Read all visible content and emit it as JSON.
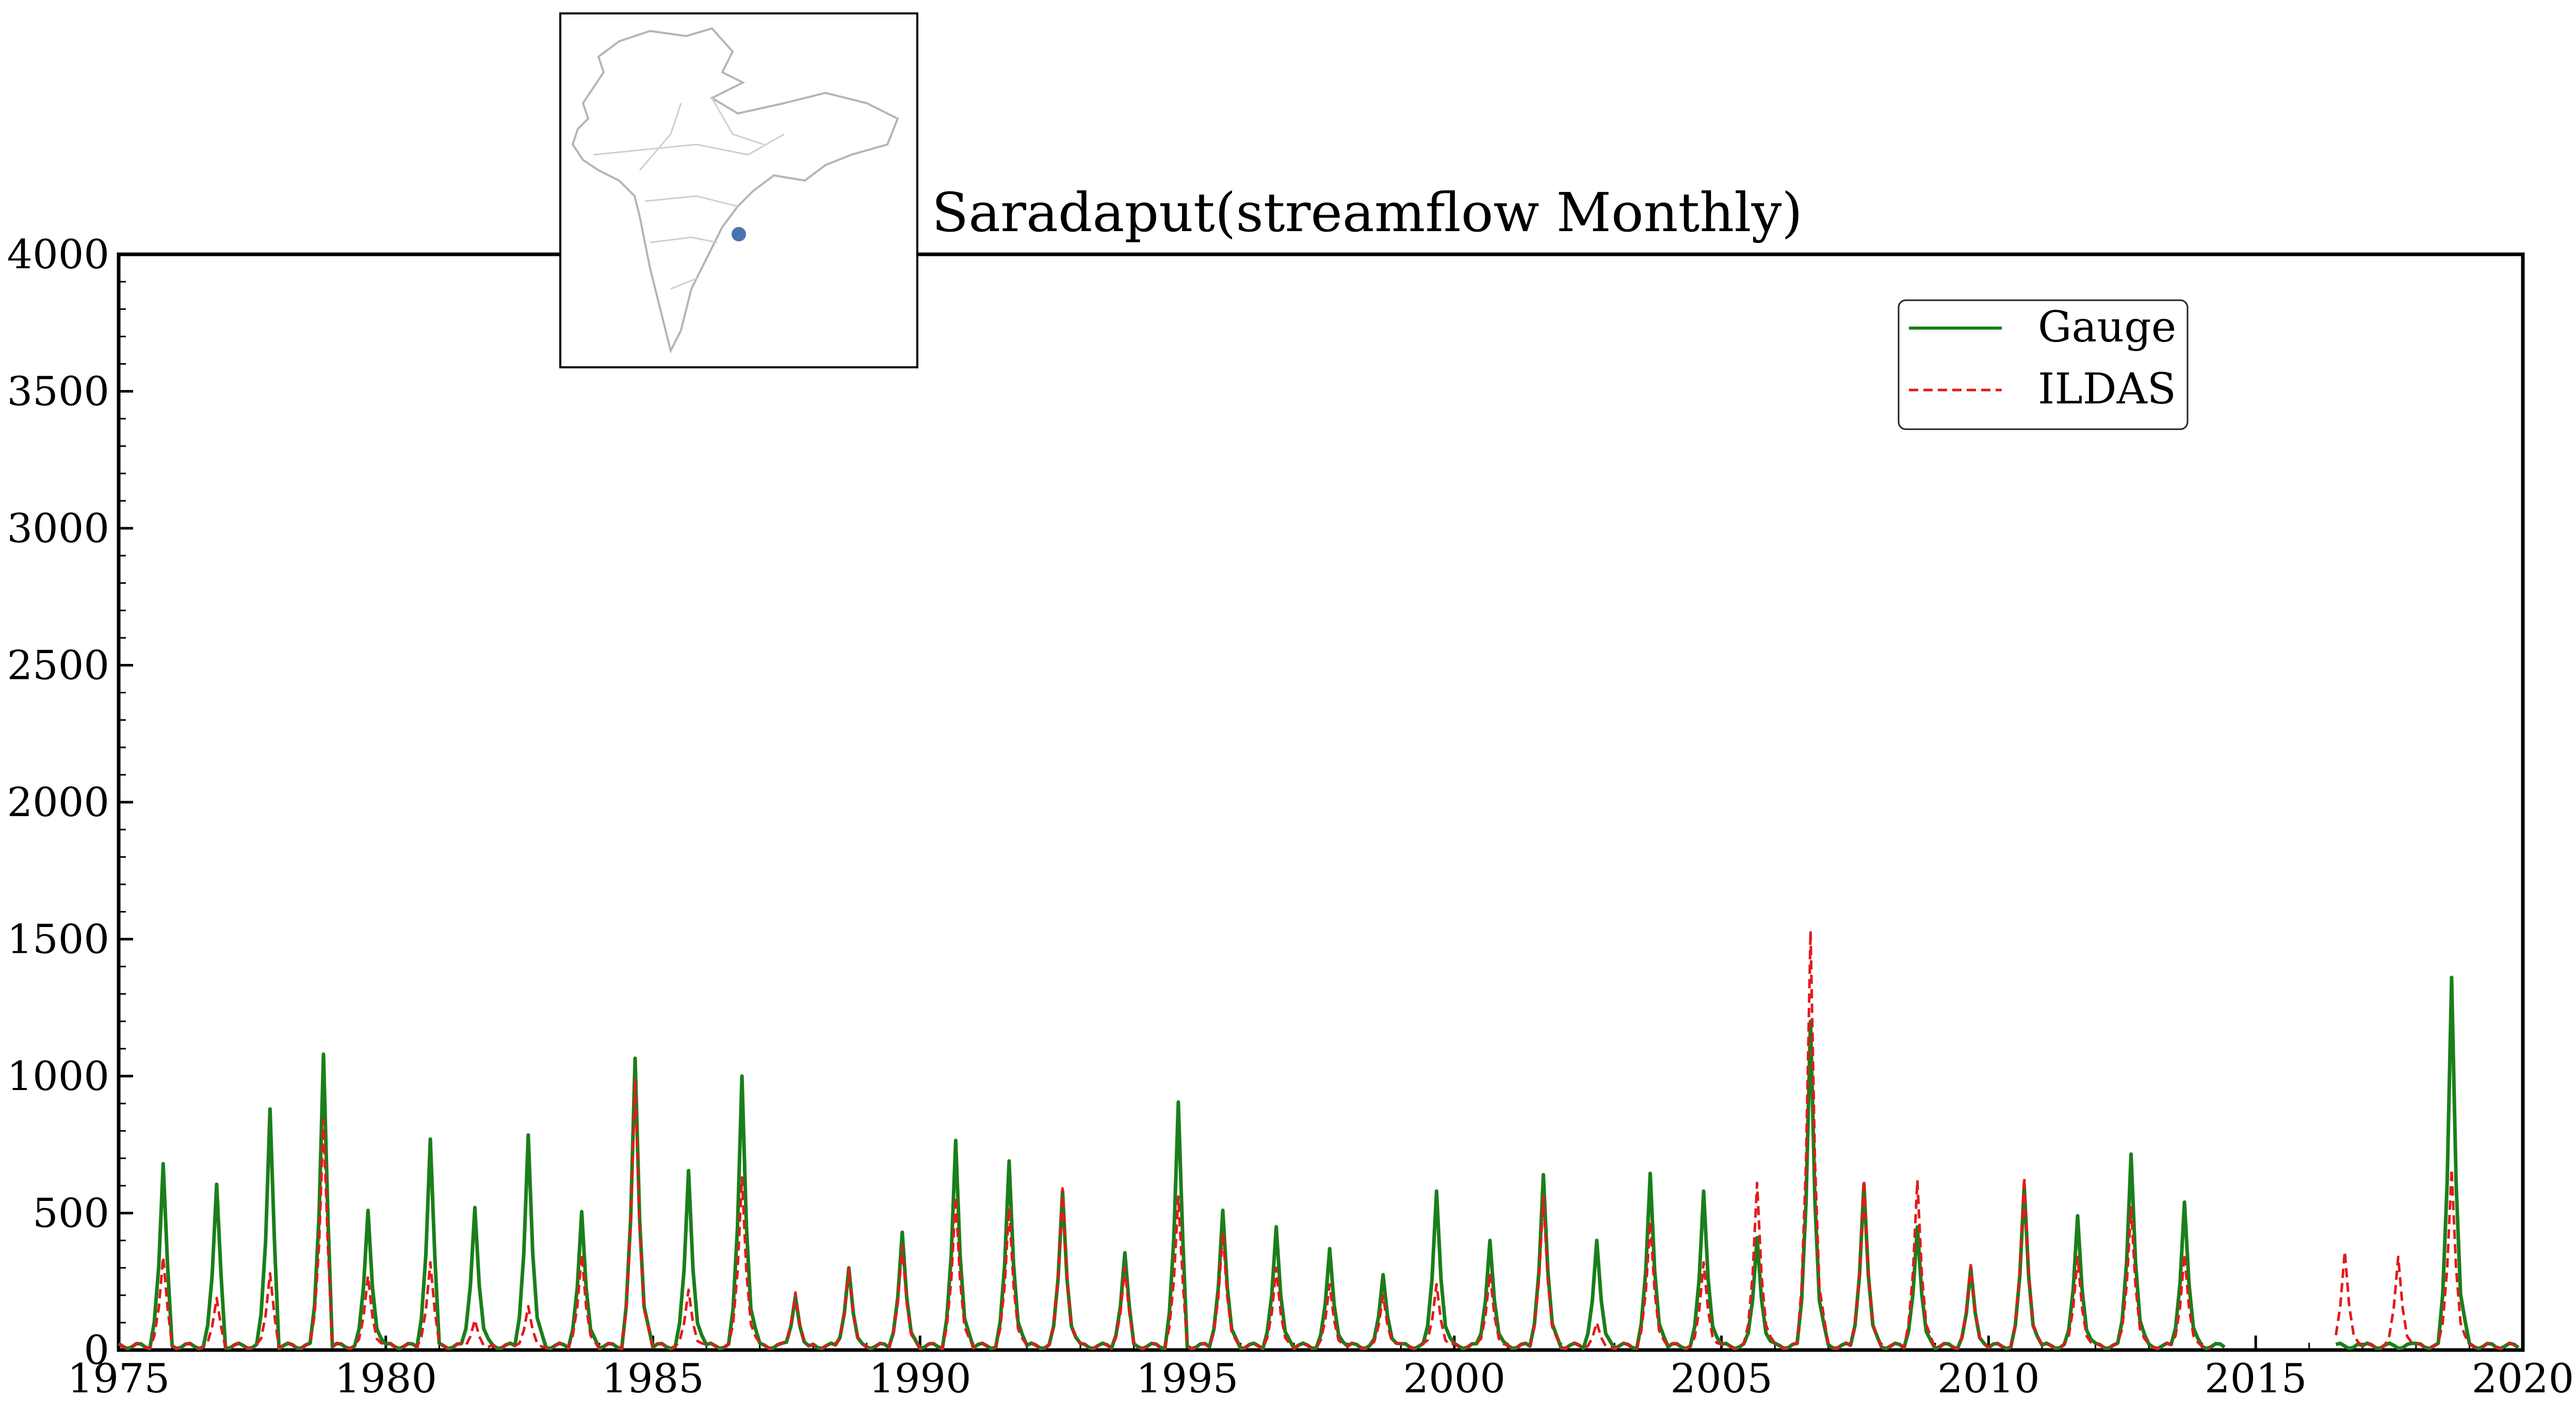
{
  "chart_data": {
    "type": "line",
    "title": "Saradaput(streamflow Monthly)",
    "xlabel": "",
    "ylabel": "",
    "xlim": [
      1975,
      2020
    ],
    "ylim": [
      0,
      4000
    ],
    "xticks": [
      1975,
      1980,
      1985,
      1990,
      1995,
      2000,
      2005,
      2010,
      2015,
      2020
    ],
    "yticks": [
      0,
      500,
      1000,
      1500,
      2000,
      2500,
      3000,
      3500,
      4000
    ],
    "grid": false,
    "legend": "upper-right",
    "inset_map": {
      "region": "Indian subcontinent river basins",
      "marker_color": "#4a74b0"
    },
    "series": [
      {
        "name": "Gauge",
        "style": "solid",
        "color": "#1a7f1a",
        "peaks": [
          {
            "year": 1975.0,
            "base": 20
          },
          {
            "year": 1975.8,
            "value": 680
          },
          {
            "year": 1976.8,
            "value": 605
          },
          {
            "year": 1977.8,
            "value": 880
          },
          {
            "year": 1978.8,
            "value": 1080
          },
          {
            "year": 1979.7,
            "value": 510
          },
          {
            "year": 1980.8,
            "value": 770
          },
          {
            "year": 1981.7,
            "value": 520
          },
          {
            "year": 1982.7,
            "value": 785
          },
          {
            "year": 1983.7,
            "value": 505
          },
          {
            "year": 1984.7,
            "value": 1065
          },
          {
            "year": 1985.7,
            "value": 655
          },
          {
            "year": 1986.7,
            "value": 1000
          },
          {
            "year": 1987.7,
            "value": 195
          },
          {
            "year": 1988.7,
            "value": 300
          },
          {
            "year": 1989.7,
            "value": 430
          },
          {
            "year": 1990.7,
            "value": 765
          },
          {
            "year": 1991.7,
            "value": 690
          },
          {
            "year": 1992.7,
            "value": 580
          },
          {
            "year": 1993.8,
            "value": 355
          },
          {
            "year": 1994.8,
            "value": 905
          },
          {
            "year": 1995.7,
            "value": 510
          },
          {
            "year": 1996.7,
            "value": 450
          },
          {
            "year": 1997.7,
            "value": 370
          },
          {
            "year": 1998.7,
            "value": 275
          },
          {
            "year": 1999.7,
            "value": 580
          },
          {
            "year": 2000.7,
            "value": 400
          },
          {
            "year": 2001.7,
            "value": 640
          },
          {
            "year": 2002.7,
            "value": 400
          },
          {
            "year": 2003.7,
            "value": 645
          },
          {
            "year": 2004.7,
            "value": 580
          },
          {
            "year": 2005.7,
            "value": 410
          },
          {
            "year": 2006.7,
            "value": 1200
          },
          {
            "year": 2007.7,
            "value": 605
          },
          {
            "year": 2008.7,
            "value": 450
          },
          {
            "year": 2009.7,
            "value": 300
          },
          {
            "year": 2010.7,
            "value": 600
          },
          {
            "year": 2011.7,
            "value": 490
          },
          {
            "year": 2012.7,
            "value": 715
          },
          {
            "year": 2013.7,
            "value": 540
          },
          {
            "year": 2018.7,
            "value": 1360
          }
        ]
      },
      {
        "name": "ILDAS",
        "style": "dashed",
        "color": "#e31a1c",
        "peaks": [
          {
            "year": 1975.8,
            "value": 340
          },
          {
            "year": 1976.8,
            "value": 190
          },
          {
            "year": 1977.8,
            "value": 280
          },
          {
            "year": 1978.8,
            "value": 840
          },
          {
            "year": 1979.7,
            "value": 270
          },
          {
            "year": 1980.8,
            "value": 320
          },
          {
            "year": 1981.7,
            "value": 110
          },
          {
            "year": 1982.7,
            "value": 160
          },
          {
            "year": 1983.7,
            "value": 350
          },
          {
            "year": 1984.7,
            "value": 990
          },
          {
            "year": 1985.7,
            "value": 220
          },
          {
            "year": 1986.7,
            "value": 630
          },
          {
            "year": 1987.7,
            "value": 210
          },
          {
            "year": 1988.7,
            "value": 300
          },
          {
            "year": 1989.7,
            "value": 380
          },
          {
            "year": 1990.7,
            "value": 560
          },
          {
            "year": 1991.7,
            "value": 520
          },
          {
            "year": 1992.7,
            "value": 590
          },
          {
            "year": 1993.8,
            "value": 300
          },
          {
            "year": 1994.8,
            "value": 560
          },
          {
            "year": 1995.7,
            "value": 430
          },
          {
            "year": 1996.7,
            "value": 300
          },
          {
            "year": 1997.7,
            "value": 240
          },
          {
            "year": 1998.7,
            "value": 200
          },
          {
            "year": 1999.7,
            "value": 240
          },
          {
            "year": 2000.7,
            "value": 280
          },
          {
            "year": 2001.7,
            "value": 560
          },
          {
            "year": 2002.7,
            "value": 100
          },
          {
            "year": 2003.7,
            "value": 470
          },
          {
            "year": 2004.7,
            "value": 320
          },
          {
            "year": 2005.7,
            "value": 610
          },
          {
            "year": 2006.7,
            "value": 1530
          },
          {
            "year": 2007.7,
            "value": 620
          },
          {
            "year": 2008.7,
            "value": 620
          },
          {
            "year": 2009.7,
            "value": 310
          },
          {
            "year": 2010.7,
            "value": 630
          },
          {
            "year": 2011.7,
            "value": 340
          },
          {
            "year": 2012.7,
            "value": 520
          },
          {
            "year": 2013.7,
            "value": 350
          },
          {
            "year": 2016.7,
            "value": 360
          },
          {
            "year": 2017.7,
            "value": 340
          },
          {
            "year": 2018.7,
            "value": 660
          }
        ]
      }
    ]
  }
}
